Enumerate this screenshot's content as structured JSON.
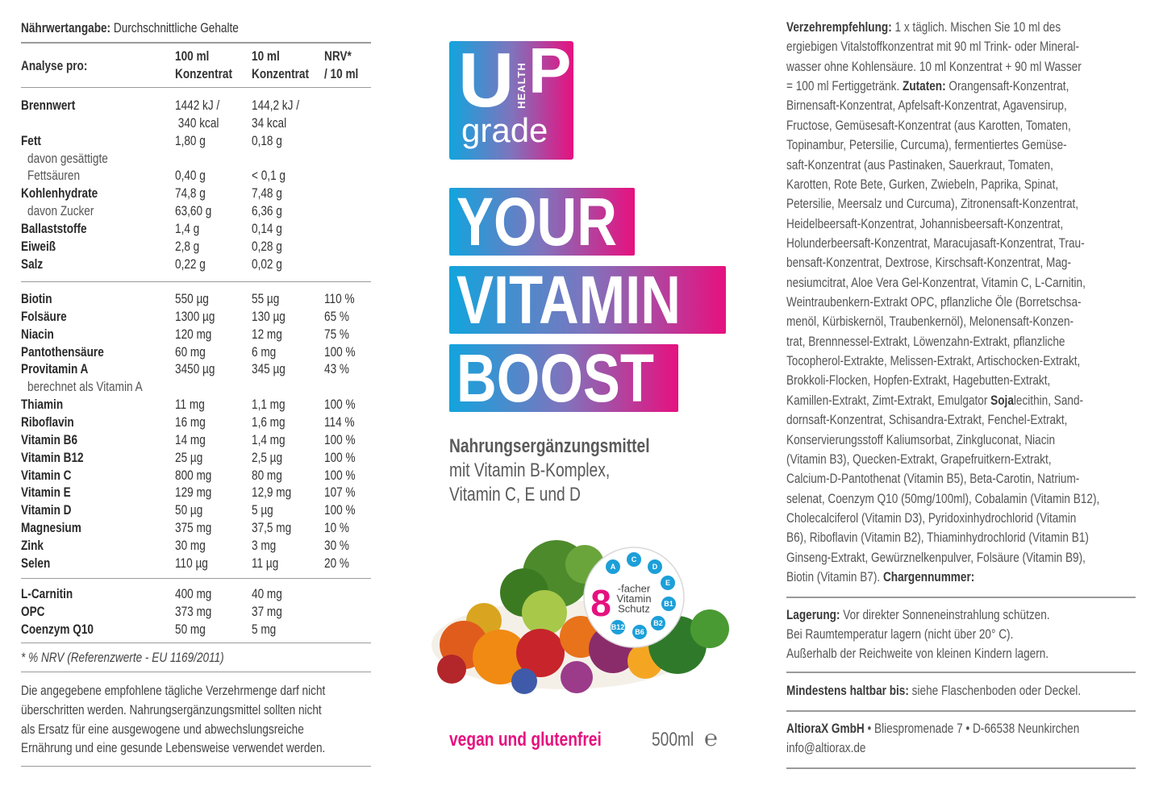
{
  "nutrition": {
    "title": [
      {
        "text": "Nährwertangabe:",
        "bold": true
      },
      {
        "text": " Durchschnittliche Gehalte",
        "bold": false
      }
    ],
    "header": {
      "label": "Analyse pro:",
      "col1": [
        "100 ml",
        "Konzentrat"
      ],
      "col2": [
        "10 ml",
        "Konzentrat"
      ],
      "col3": [
        "NRV*",
        "/ 10 ml"
      ]
    },
    "groups": [
      [
        {
          "label": "Brennwert",
          "bold": true,
          "per100": "1442 kJ /",
          "per10": "144,2 kJ /"
        },
        {
          "per100": " 340 kcal",
          "per10": "34 kcal"
        },
        {
          "label": "Fett",
          "bold": true,
          "per100": "1,80 g",
          "per10": "0,18 g"
        },
        {
          "label": "davon gesättigte",
          "indent": true
        },
        {
          "label": "Fettsäuren",
          "indent": true,
          "per100": "0,40 g",
          "per10": "< 0,1 g"
        },
        {
          "label": "Kohlenhydrate",
          "bold": true,
          "per100": "74,8 g",
          "per10": "7,48 g"
        },
        {
          "label": "davon Zucker",
          "indent": true,
          "per100": "63,60 g",
          "per10": "6,36 g"
        },
        {
          "label": "Ballaststoffe",
          "bold": true,
          "per100": "1,4 g",
          "per10": "0,14 g"
        },
        {
          "label": "Eiweiß",
          "bold": true,
          "per100": "2,8 g",
          "per10": "0,28 g"
        },
        {
          "label": "Salz",
          "bold": true,
          "per100": "0,22 g",
          "per10": "0,02 g"
        }
      ],
      [
        {
          "label": "Biotin",
          "bold": true,
          "per100": "550 µg",
          "per10": "55 µg",
          "nrv": "110 %"
        },
        {
          "label": "Folsäure",
          "bold": true,
          "per100": "1300 µg",
          "per10": "130 µg",
          "nrv": "65 %"
        },
        {
          "label": "Niacin",
          "bold": true,
          "per100": "120 mg",
          "per10": "12 mg",
          "nrv": "75 %"
        },
        {
          "label": "Pantothensäure",
          "bold": true,
          "per100": "60 mg",
          "per10": "6 mg",
          "nrv": "100 %"
        },
        {
          "label": "Provitamin A",
          "bold": true,
          "per100": "3450 µg",
          "per10": "345 µg",
          "nrv": "43 %"
        },
        {
          "label": "berechnet als Vitamin A",
          "indent": true
        },
        {
          "label": "Thiamin",
          "bold": true,
          "per100": "11 mg",
          "per10": "1,1 mg",
          "nrv": "100 %"
        },
        {
          "label": "Riboflavin",
          "bold": true,
          "per100": "16 mg",
          "per10": "1,6 mg",
          "nrv": "114 %"
        },
        {
          "label": "Vitamin B6",
          "bold": true,
          "per100": "14 mg",
          "per10": "1,4 mg",
          "nrv": "100 %"
        },
        {
          "label": "Vitamin B12",
          "bold": true,
          "per100": "25 µg",
          "per10": "2,5 µg",
          "nrv": "100 %"
        },
        {
          "label": "Vitamin C",
          "bold": true,
          "per100": "800 mg",
          "per10": "80 mg",
          "nrv": "100 %"
        },
        {
          "label": "Vitamin E",
          "bold": true,
          "per100": "129 mg",
          "per10": "12,9 mg",
          "nrv": "107 %"
        },
        {
          "label": "Vitamin D",
          "bold": true,
          "per100": "50 µg",
          "per10": "5 µg",
          "nrv": "100 %"
        },
        {
          "label": "Magnesium",
          "bold": true,
          "per100": "375 mg",
          "per10": "37,5 mg",
          "nrv": "10 %"
        },
        {
          "label": "Zink",
          "bold": true,
          "per100": "30 mg",
          "per10": "3 mg",
          "nrv": "30 %"
        },
        {
          "label": "Selen",
          "bold": true,
          "per100": "110 µg",
          "per10": "11 µg",
          "nrv": "20 %"
        }
      ],
      [
        {
          "label": "L-Carnitin",
          "bold": true,
          "per100": "400 mg",
          "per10": "40 mg"
        },
        {
          "label": "OPC",
          "bold": true,
          "per100": "373 mg",
          "per10": "37 mg"
        },
        {
          "label": "Coenzym Q10",
          "bold": true,
          "per100": "50 mg",
          "per10": "5 mg"
        }
      ]
    ],
    "footnote": "* % NRV (Referenzwerte - EU 1169/2011)",
    "notice": [
      "Die angegebene empfohlene tägliche Verzehrmenge darf nicht",
      "überschritten werden. Nahrungsergänzungsmittel sollten nicht",
      "als Ersatz für eine ausgewogene und abwechslungsreiche",
      "Ernährung und eine gesunde Lebensweise verwendet werden."
    ]
  },
  "front": {
    "logo": {
      "u": "U",
      "p": "P",
      "health": "HEALTH",
      "grade": "grade"
    },
    "headline": [
      "YOUR",
      "VITAMIN",
      "BOOST"
    ],
    "subtitle": [
      {
        "text": "Nahrungsergänzungsmittel",
        "bold": true
      },
      {
        "text": "mit Vitamin B-Komplex,",
        "bold": false
      },
      {
        "text": "Vitamin C, E und D",
        "bold": false
      }
    ],
    "badge": {
      "number": "8",
      "lines": [
        "-facher",
        "Vitamin",
        "Schutz"
      ],
      "vitamins": [
        "A",
        "C",
        "D",
        "E",
        "B1",
        "B2",
        "B6",
        "B12"
      ]
    },
    "claim": "vegan und glutenfrei",
    "volume": "500ml",
    "estimated_sign": "℮"
  },
  "back": {
    "ingredients": [
      [
        {
          "text": "Verzehrempfehlung:",
          "bold": true
        },
        {
          "text": " 1 x täglich. Mischen Sie 10 ml des",
          "bold": false
        }
      ],
      "ergiebigen Vitalstoffkonzentrat mit 90 ml Trink- oder Mineral-",
      "wasser ohne Kohlensäure. 10 ml Konzentrat + 90 ml Wasser",
      [
        {
          "text": "= 100 ml Fertiggetränk. ",
          "bold": false
        },
        {
          "text": "Zutaten:",
          "bold": true
        },
        {
          "text": " Orangensaft-Konzentrat,",
          "bold": false
        }
      ],
      "Birnensaft-Konzentrat, Apfelsaft-Konzentrat, Agavensirup,",
      "Fructose, Gemüsesaft-Konzentrat (aus Karotten, Tomaten,",
      "Topinambur, Petersilie, Curcuma), fermentiertes Gemüse-",
      "saft-Konzentrat (aus Pastinaken, Sauerkraut, Tomaten,",
      "Karotten, Rote Bete, Gurken, Zwiebeln, Paprika, Spinat,",
      "Petersilie, Meersalz und Curcuma), Zitronensaft-Konzentrat,",
      "Heidelbeersaft-Konzentrat, Johannisbeersaft-Konzentrat,",
      "Holunderbeersaft-Konzentrat, Maracujasaft-Konzentrat, Trau-",
      "bensaft-Konzentrat, Dextrose, Kirschsaft-Konzentrat, Mag-",
      "nesiumcitrat, Aloe Vera Gel-Konzentrat, Vitamin C, L-Carnitin,",
      "Weintraubenkern-Extrakt OPC, pflanzliche Öle (Borretschsa-",
      "menöl, Kürbiskernöl, Traubenkernöl), Melonensaft-Konzen-",
      "trat, Brennnessel-Extrakt, Löwenzahn-Extrakt, pflanzliche",
      "Tocopherol-Extrakte, Melissen-Extrakt, Artischocken-Extrakt,",
      "Brokkoli-Flocken, Hopfen-Extrakt, Hagebutten-Extrakt,",
      [
        {
          "text": "Kamillen-Extrakt, Zimt-Extrakt, Emulgator ",
          "bold": false
        },
        {
          "text": "Soja",
          "bold": true
        },
        {
          "text": "lecithin, Sand-",
          "bold": false
        }
      ],
      "dornsaft-Konzentrat, Schisandra-Extrakt, Fenchel-Extrakt,",
      "Konservierungsstoff Kaliumsorbat, Zinkgluconat, Niacin",
      "(Vitamin B3), Quecken-Extrakt, Grapefruitkern-Extrakt,",
      "Calcium-D-Pantothenat (Vitamin B5), Beta-Carotin, Natrium-",
      "selenat, Coenzym Q10 (50mg/100ml), Cobalamin (Vitamin B12),",
      "Cholecalciferol (Vitamin D3), Pyridoxinhydrochlorid (Vitamin",
      "B6), Riboflavin (Vitamin B2), Thiaminhydrochlorid (Vitamin B1)",
      "Ginseng-Extrakt, Gewürznelkenpulver, Folsäure (Vitamin B9),",
      [
        {
          "text": "Biotin (Vitamin B7). ",
          "bold": false
        },
        {
          "text": "Chargennummer:",
          "bold": true
        }
      ]
    ],
    "storage": [
      [
        {
          "text": "Lagerung:",
          "bold": true
        },
        {
          "text": " Vor direkter Sonneneinstrahlung schützen.",
          "bold": false
        }
      ],
      "Bei Raumtemperatur lagern (nicht über 20° C).",
      "Außerhalb der Reichweite von kleinen Kindern lagern."
    ],
    "best_before": [
      [
        {
          "text": "Mindestens haltbar bis:",
          "bold": true
        },
        {
          "text": " siehe Flaschenboden oder Deckel.",
          "bold": false
        }
      ]
    ],
    "address": [
      [
        {
          "text": "AltioraX GmbH",
          "bold": true
        },
        {
          "text": " • Bliespromenade 7 • D-66538 Neunkirchen",
          "bold": false
        }
      ],
      "info@altiorax.de"
    ]
  }
}
